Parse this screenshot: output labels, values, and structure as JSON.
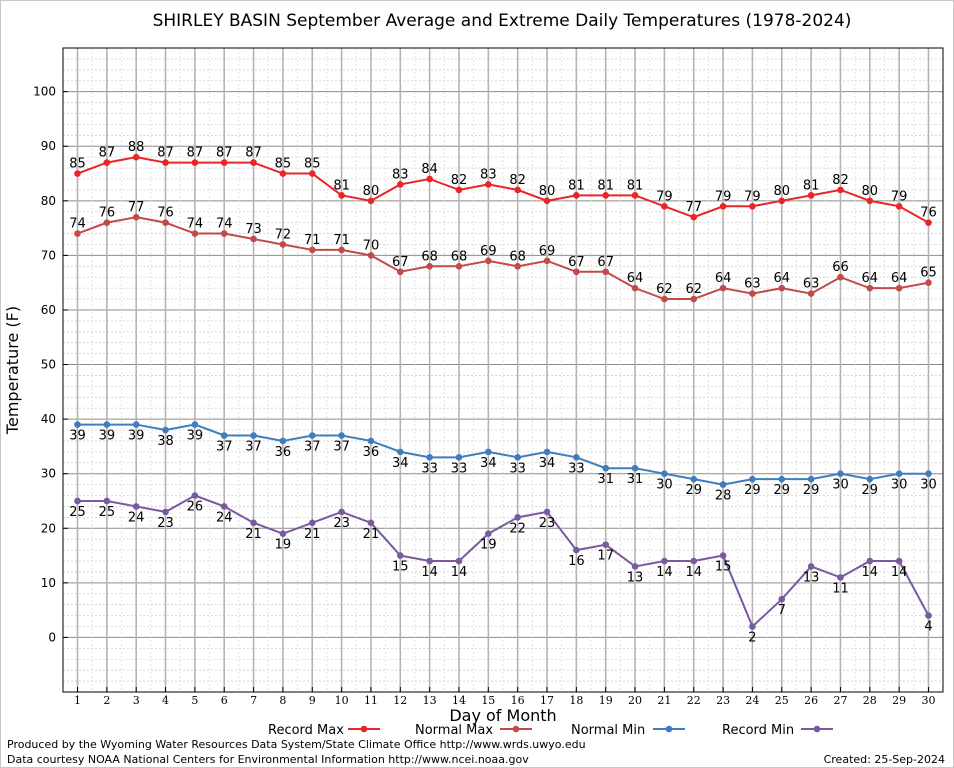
{
  "chart_data": {
    "type": "line",
    "title": "SHIRLEY BASIN September Average and Extreme Daily Temperatures (1978-2024)",
    "xlabel": "Day of Month",
    "ylabel": "Temperature (F)",
    "ylim": [
      -10,
      108
    ],
    "yticks": [
      0,
      10,
      20,
      30,
      40,
      50,
      60,
      70,
      80,
      90,
      100
    ],
    "x": [
      1,
      2,
      3,
      4,
      5,
      6,
      7,
      8,
      9,
      10,
      11,
      12,
      13,
      14,
      15,
      16,
      17,
      18,
      19,
      20,
      21,
      22,
      23,
      24,
      25,
      26,
      27,
      28,
      29,
      30
    ],
    "grid": true,
    "legend_position": "bottom",
    "series": [
      {
        "name": "Record Max",
        "color": "#e8262a",
        "label_side": "above",
        "values": [
          85,
          87,
          88,
          87,
          87,
          87,
          87,
          85,
          85,
          81,
          80,
          83,
          84,
          82,
          83,
          82,
          80,
          81,
          81,
          81,
          79,
          77,
          79,
          79,
          80,
          81,
          82,
          80,
          79,
          76
        ]
      },
      {
        "name": "Normal Max",
        "color": "#c24a4a",
        "label_side": "above",
        "values": [
          74,
          76,
          77,
          76,
          74,
          74,
          73,
          72,
          71,
          71,
          70,
          67,
          68,
          68,
          69,
          68,
          69,
          67,
          67,
          64,
          62,
          62,
          64,
          63,
          64,
          63,
          66,
          64,
          64,
          65
        ]
      },
      {
        "name": "Normal Min",
        "color": "#3f7dbf",
        "label_side": "below",
        "values": [
          39,
          39,
          39,
          38,
          39,
          37,
          37,
          36,
          37,
          37,
          36,
          34,
          33,
          33,
          34,
          33,
          34,
          33,
          31,
          31,
          30,
          29,
          28,
          29,
          29,
          29,
          30,
          29,
          30,
          30
        ]
      },
      {
        "name": "Record Min",
        "color": "#7a5a9e",
        "label_side": "below",
        "values": [
          25,
          25,
          24,
          23,
          26,
          24,
          21,
          19,
          21,
          23,
          21,
          15,
          14,
          14,
          19,
          22,
          23,
          16,
          17,
          13,
          14,
          14,
          15,
          2,
          7,
          13,
          11,
          14,
          14,
          4
        ]
      }
    ]
  },
  "footer": {
    "producer": "Produced by the Wyoming Water Resources Data System/State Climate Office http://www.wrds.uwyo.edu",
    "courtesy": "Data courtesy NOAA National Centers for Environmental Information http://www.ncei.noaa.gov",
    "created": "Created:  25-Sep-2024"
  }
}
